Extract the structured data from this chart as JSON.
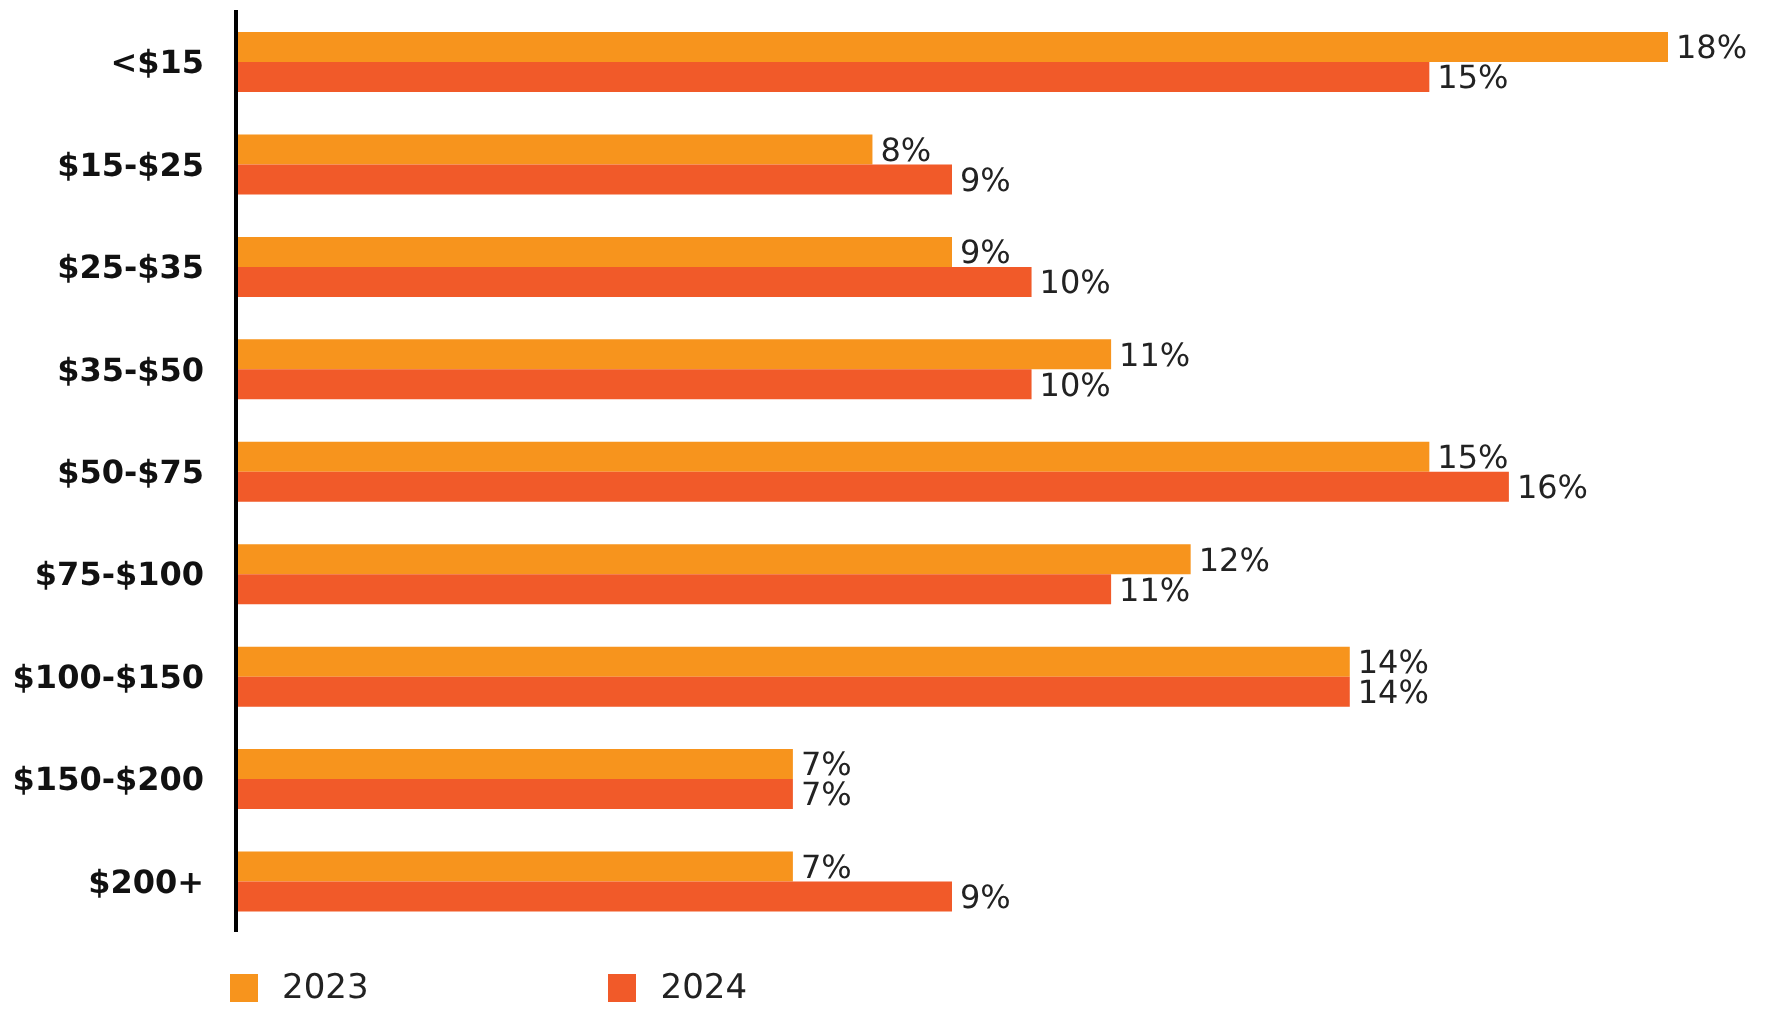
{
  "chart_data": {
    "type": "bar",
    "orientation": "horizontal",
    "categories": [
      "<$15",
      "$15-$25",
      "$25-$35",
      "$35-$50",
      "$50-$75",
      "$75-$100",
      "$100-$150",
      "$150-$200",
      "$200+"
    ],
    "series": [
      {
        "name": "2023",
        "color": "#f7941d",
        "values": [
          18,
          8,
          9,
          11,
          15,
          12,
          14,
          7,
          7
        ],
        "value_labels": [
          "18%",
          "8%",
          "9%",
          "11%",
          "15%",
          "12%",
          "14%",
          "7%",
          "7%"
        ]
      },
      {
        "name": "2024",
        "color": "#f15a29",
        "values": [
          15,
          9,
          10,
          10,
          16,
          11,
          14,
          7,
          9
        ],
        "value_labels": [
          "15%",
          "9%",
          "10%",
          "10%",
          "16%",
          "11%",
          "14%",
          "7%",
          "9%"
        ]
      }
    ],
    "legend": "bottom left",
    "grid": false
  }
}
